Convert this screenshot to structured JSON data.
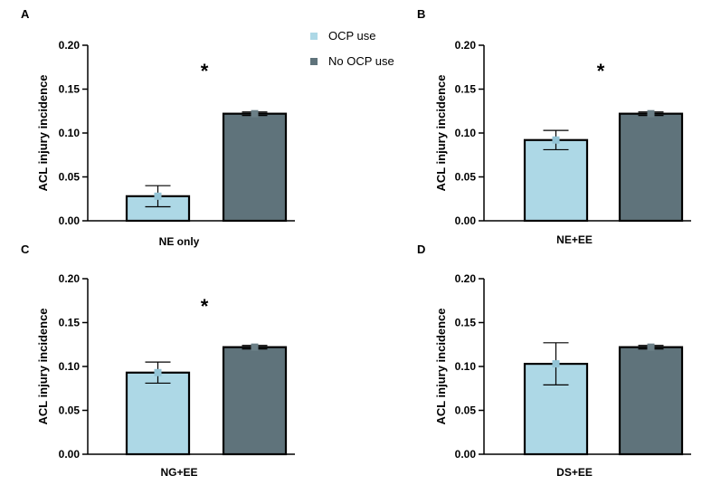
{
  "colors": {
    "ocp": "#add8e6",
    "no_ocp": "#5f737b",
    "ocp_marker": "#93c4d6",
    "no_ocp_marker": "#6b7f87",
    "axis": "#000000"
  },
  "legend": [
    {
      "label": "OCP use",
      "color": "#add8e6"
    },
    {
      "label": "No OCP use",
      "color": "#5f737b"
    }
  ],
  "chart_data": [
    {
      "panel": "A",
      "type": "bar",
      "categories": [
        "NE only"
      ],
      "series": [
        {
          "name": "OCP use",
          "values": [
            0.028
          ],
          "error": [
            0.012
          ]
        },
        {
          "name": "No OCP use",
          "values": [
            0.122
          ],
          "error": [
            0.002
          ]
        }
      ],
      "ylabel": "ACL injury incidence",
      "ylim": [
        0,
        0.2
      ],
      "yticks": [
        "0.00",
        "0.05",
        "0.10",
        "0.15",
        "0.20"
      ],
      "annotation": "*"
    },
    {
      "panel": "B",
      "type": "bar",
      "categories": [
        "NE+EE"
      ],
      "series": [
        {
          "name": "OCP use",
          "values": [
            0.092
          ],
          "error": [
            0.011
          ]
        },
        {
          "name": "No OCP use",
          "values": [
            0.122
          ],
          "error": [
            0.002
          ]
        }
      ],
      "ylabel": "ACL injury incidence",
      "ylim": [
        0,
        0.2
      ],
      "yticks": [
        "0.00",
        "0.05",
        "0.10",
        "0.15",
        "0.20"
      ],
      "annotation": "*"
    },
    {
      "panel": "C",
      "type": "bar",
      "categories": [
        "NG+EE"
      ],
      "series": [
        {
          "name": "OCP use",
          "values": [
            0.093
          ],
          "error": [
            0.012
          ]
        },
        {
          "name": "No OCP use",
          "values": [
            0.122
          ],
          "error": [
            0.002
          ]
        }
      ],
      "ylabel": "ACL injury incidence",
      "ylim": [
        0,
        0.2
      ],
      "yticks": [
        "0.00",
        "0.05",
        "0.10",
        "0.15",
        "0.20"
      ],
      "annotation": "*"
    },
    {
      "panel": "D",
      "type": "bar",
      "categories": [
        "DS+EE"
      ],
      "series": [
        {
          "name": "OCP use",
          "values": [
            0.103
          ],
          "error": [
            0.024
          ]
        },
        {
          "name": "No OCP use",
          "values": [
            0.122
          ],
          "error": [
            0.002
          ]
        }
      ],
      "ylabel": "ACL injury incidence",
      "ylim": [
        0,
        0.2
      ],
      "yticks": [
        "0.00",
        "0.05",
        "0.10",
        "0.15",
        "0.20"
      ],
      "annotation": ""
    }
  ]
}
